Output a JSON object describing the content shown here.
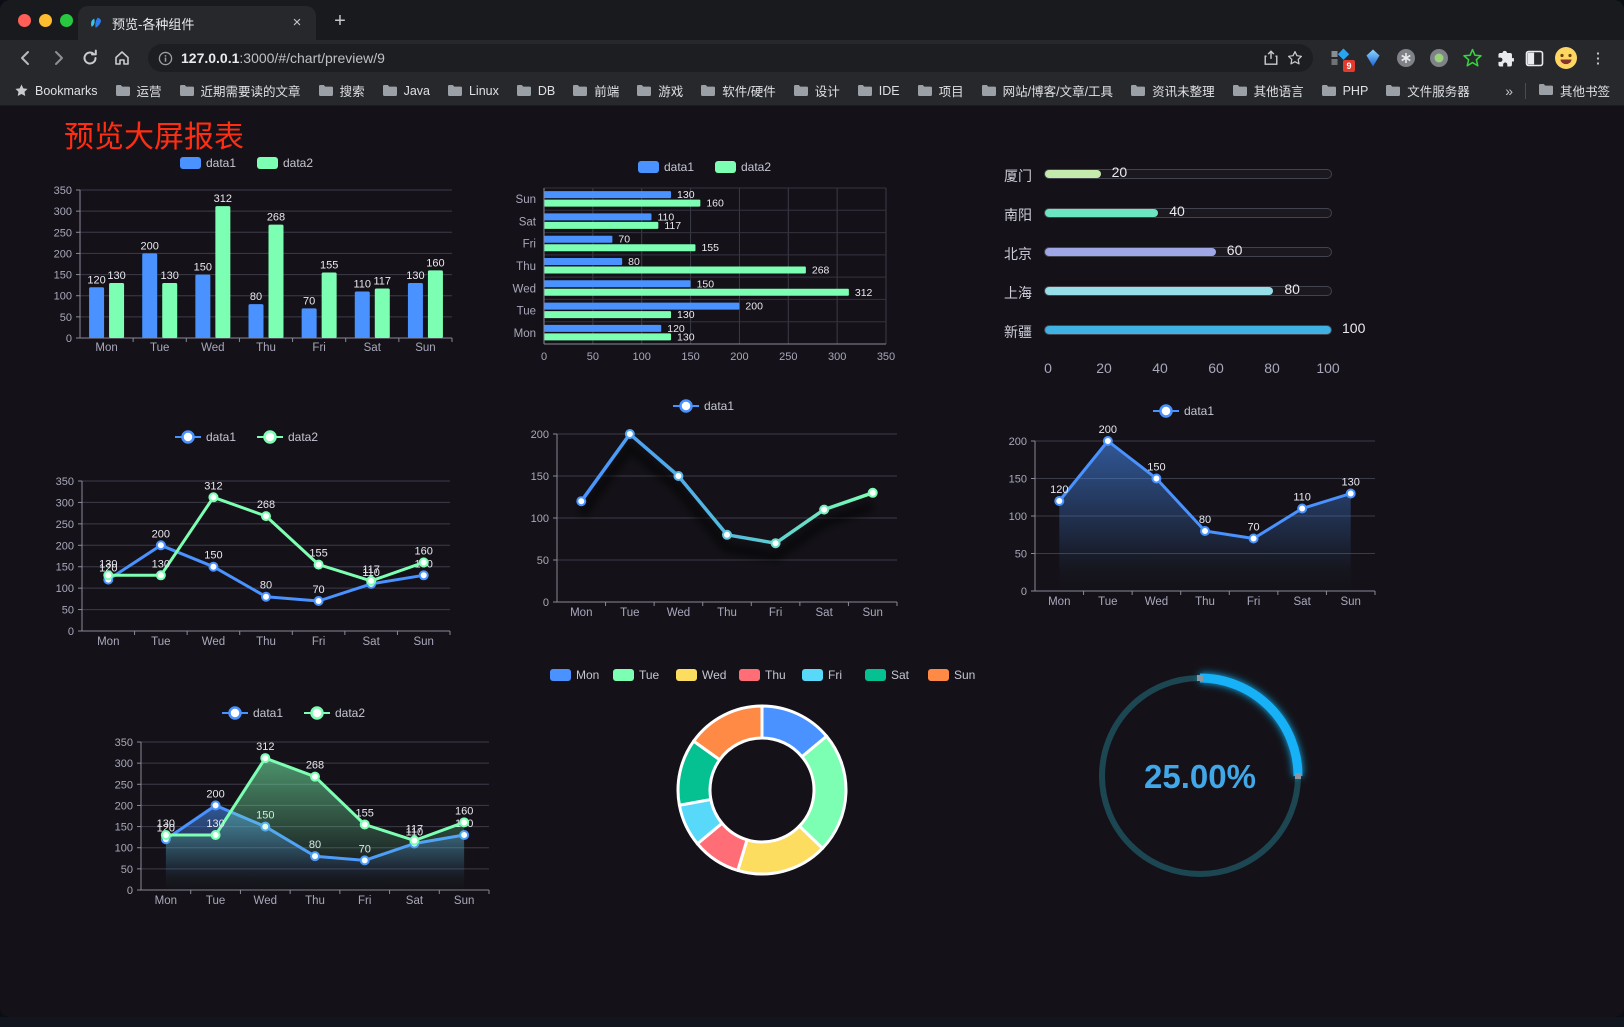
{
  "browser": {
    "traffic_lights": [
      "#ff5f57",
      "#febc2e",
      "#28c840"
    ],
    "tab_title": "预览-各种组件",
    "tab_close": "×",
    "new_tab": "+",
    "url_host": "127.0.0.1",
    "url_rest": ":3000/#/chart/preview/9",
    "bookmarks_label": "Bookmarks",
    "bookmarks": [
      "运营",
      "近期需要读的文章",
      "搜索",
      "Java",
      "Linux",
      "DB",
      "前端",
      "游戏",
      "软件/硬件",
      "设计",
      "IDE",
      "项目",
      "网站/博客/文章/工具",
      "资讯未整理",
      "其他语言",
      "PHP",
      "文件服务器"
    ],
    "overflow_chevron": "»",
    "other_bookmarks": "其他书签",
    "extension_badge": "9"
  },
  "page": {
    "title": "预览大屏报表",
    "title_color": "#ff2d12",
    "background": "#141218"
  },
  "chart_data": [
    {
      "id": "bar-vertical",
      "type": "bar",
      "categories": [
        "Mon",
        "Tue",
        "Wed",
        "Thu",
        "Fri",
        "Sat",
        "Sun"
      ],
      "series": [
        {
          "name": "data1",
          "color": "#4992ff",
          "values": [
            120,
            200,
            150,
            80,
            70,
            110,
            130
          ]
        },
        {
          "name": "data2",
          "color": "#7cffb2",
          "values": [
            130,
            130,
            312,
            268,
            155,
            117,
            160
          ]
        }
      ],
      "ylim": [
        0,
        350
      ],
      "yticks": [
        0,
        50,
        100,
        150,
        200,
        250,
        300,
        350
      ],
      "grid": true,
      "legend_position": "top",
      "labels": true
    },
    {
      "id": "bar-horizontal",
      "type": "bar",
      "orientation": "horizontal",
      "category_order": "bottom-to-top",
      "categories": [
        "Mon",
        "Tue",
        "Wed",
        "Thu",
        "Fri",
        "Sat",
        "Sun"
      ],
      "series": [
        {
          "name": "data1",
          "color": "#4992ff",
          "values": [
            120,
            200,
            150,
            80,
            70,
            110,
            130
          ]
        },
        {
          "name": "data2",
          "color": "#7cffb2",
          "values": [
            130,
            130,
            312,
            268,
            155,
            117,
            160
          ]
        }
      ],
      "xlim": [
        0,
        350
      ],
      "xticks": [
        0,
        50,
        100,
        150,
        200,
        250,
        300,
        350
      ],
      "grid": true,
      "legend_position": "top",
      "labels": true
    },
    {
      "id": "progress-bars",
      "type": "bar",
      "orientation": "horizontal-progress",
      "items": [
        {
          "label": "厦门",
          "value": 20,
          "color": "#c4ebad"
        },
        {
          "label": "南阳",
          "value": 40,
          "color": "#6be6c1"
        },
        {
          "label": "北京",
          "value": 60,
          "color": "#a0a7e6"
        },
        {
          "label": "上海",
          "value": 80,
          "color": "#96dee8"
        },
        {
          "label": "新疆",
          "value": 100,
          "color": "#3fb1e3"
        }
      ],
      "xlim": [
        0,
        100
      ],
      "xticks": [
        0,
        20,
        40,
        60,
        80,
        100
      ]
    },
    {
      "id": "line-two-series",
      "type": "line",
      "categories": [
        "Mon",
        "Tue",
        "Wed",
        "Thu",
        "Fri",
        "Sat",
        "Sun"
      ],
      "series": [
        {
          "name": "data1",
          "color": "#4992ff",
          "values": [
            120,
            200,
            150,
            80,
            70,
            110,
            130
          ]
        },
        {
          "name": "data2",
          "color": "#7cffb2",
          "values": [
            130,
            130,
            312,
            268,
            155,
            117,
            160
          ]
        }
      ],
      "ylim": [
        0,
        350
      ],
      "yticks": [
        0,
        50,
        100,
        150,
        200,
        250,
        300,
        350
      ],
      "grid": true,
      "legend_position": "top",
      "labels": true
    },
    {
      "id": "line-gradient",
      "type": "line",
      "categories": [
        "Mon",
        "Tue",
        "Wed",
        "Thu",
        "Fri",
        "Sat",
        "Sun"
      ],
      "series": [
        {
          "name": "data1",
          "gradient": [
            "#4992ff",
            "#7cffb2"
          ],
          "color": "#4992ff",
          "values": [
            120,
            200,
            150,
            80,
            70,
            110,
            130
          ]
        }
      ],
      "ylim": [
        0,
        200
      ],
      "yticks": [
        0,
        50,
        100,
        150,
        200
      ],
      "grid": true,
      "legend_position": "top",
      "labels": false
    },
    {
      "id": "area-single",
      "type": "area",
      "categories": [
        "Mon",
        "Tue",
        "Wed",
        "Thu",
        "Fri",
        "Sat",
        "Sun"
      ],
      "series": [
        {
          "name": "data1",
          "color": "#4992ff",
          "values": [
            120,
            200,
            150,
            80,
            70,
            110,
            130
          ]
        }
      ],
      "ylim": [
        0,
        200
      ],
      "yticks": [
        0,
        50,
        100,
        150,
        200
      ],
      "grid": true,
      "legend_position": "top",
      "labels": true
    },
    {
      "id": "area-two-series",
      "type": "area",
      "categories": [
        "Mon",
        "Tue",
        "Wed",
        "Thu",
        "Fri",
        "Sat",
        "Sun"
      ],
      "series": [
        {
          "name": "data1",
          "color": "#4992ff",
          "values": [
            120,
            200,
            150,
            80,
            70,
            110,
            130
          ]
        },
        {
          "name": "data2",
          "color": "#7cffb2",
          "values": [
            130,
            130,
            312,
            268,
            155,
            117,
            160
          ]
        }
      ],
      "ylim": [
        0,
        350
      ],
      "yticks": [
        0,
        50,
        100,
        150,
        200,
        250,
        300,
        350
      ],
      "grid": true,
      "legend_position": "top",
      "labels": true
    },
    {
      "id": "donut",
      "type": "pie",
      "categories": [
        "Mon",
        "Tue",
        "Wed",
        "Thu",
        "Fri",
        "Sat",
        "Sun"
      ],
      "values": [
        120,
        200,
        150,
        80,
        70,
        110,
        130
      ],
      "colors": [
        "#4992ff",
        "#7cffb2",
        "#fddd60",
        "#ff6e76",
        "#58d9f9",
        "#05c091",
        "#ff8a45"
      ],
      "donut": true,
      "border_color": "#ffffff",
      "legend_position": "top"
    },
    {
      "id": "gauge",
      "type": "gauge",
      "value": 25,
      "max": 100,
      "display": "25.00%",
      "color": "#17b1f6",
      "track_color": "#1c4752",
      "text_color": "#41a7e8"
    }
  ]
}
